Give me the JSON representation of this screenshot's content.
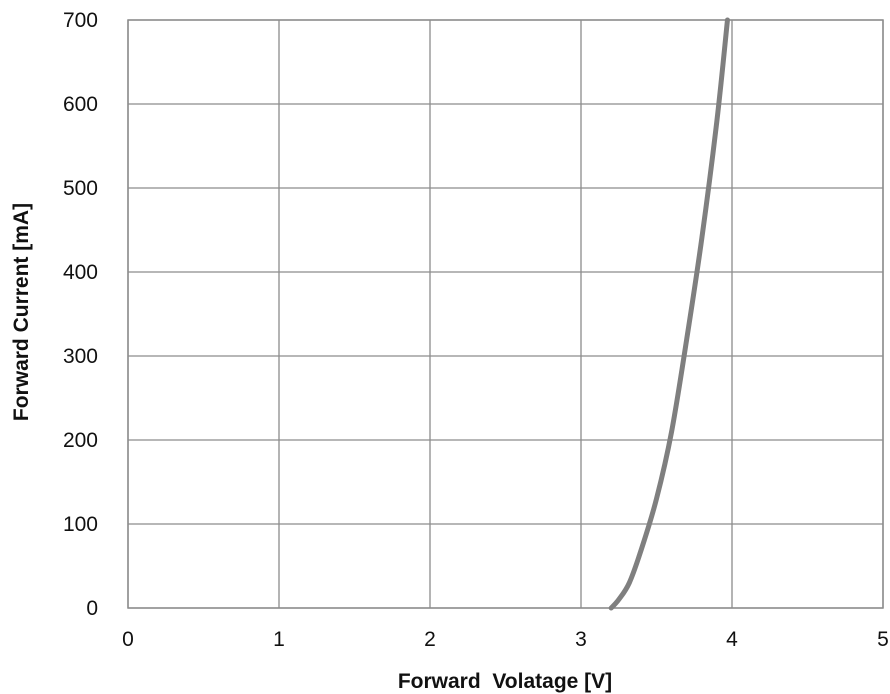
{
  "chart_data": {
    "type": "line",
    "title": "",
    "xlabel": "Forward  Volatage [V]",
    "ylabel": "Forward Current [mA]",
    "xlim": [
      0,
      5
    ],
    "ylim": [
      0,
      700
    ],
    "x_ticks": [
      0,
      1,
      2,
      3,
      4,
      5
    ],
    "y_ticks": [
      0,
      100,
      200,
      300,
      400,
      500,
      600,
      700
    ],
    "grid": true,
    "legend": "none",
    "series": [
      {
        "color": "#7f7f7f",
        "points": [
          {
            "x": 3.2,
            "y": 0
          },
          {
            "x": 3.25,
            "y": 10
          },
          {
            "x": 3.32,
            "y": 30
          },
          {
            "x": 3.4,
            "y": 70
          },
          {
            "x": 3.5,
            "y": 130
          },
          {
            "x": 3.6,
            "y": 210
          },
          {
            "x": 3.7,
            "y": 320
          },
          {
            "x": 3.8,
            "y": 440
          },
          {
            "x": 3.9,
            "y": 580
          },
          {
            "x": 3.97,
            "y": 700
          }
        ]
      }
    ]
  },
  "colors": {
    "grid": "#8c8c8c",
    "frame": "#8c8c8c",
    "text": "#111111"
  }
}
